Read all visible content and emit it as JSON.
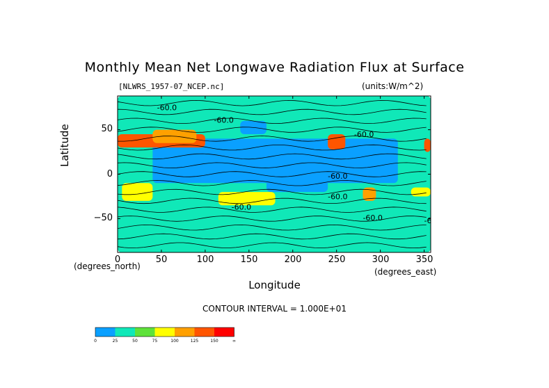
{
  "chart_data": {
    "type": "heatmap",
    "title": "Monthly Mean Net Longwave Radiation Flux at Surface",
    "file_label": "[NLWRS_1957-07_NCEP.nc]",
    "units_label": "(units:W/m^2)",
    "xlabel": "Longitude",
    "ylabel": "Latitude",
    "x_unit_label": "(degrees_east)",
    "y_unit_label": "(degrees_north)",
    "x_ticks": [
      "0",
      "50",
      "100",
      "150",
      "200",
      "250",
      "300",
      "350"
    ],
    "y_ticks": [
      "50",
      "0",
      "−50"
    ],
    "xlim": [
      0,
      357.5
    ],
    "ylim": [
      -88,
      88
    ],
    "contour_interval_text": "CONTOUR INTERVAL = 1.000E+01",
    "contour_labels": [
      "-60.0",
      "-60.0",
      "-60.0",
      "-60.0",
      "-60.0",
      "-60.0",
      "-60.0",
      "-60.0"
    ],
    "colorbar": {
      "labels": [
        "0",
        "25",
        "50",
        "75",
        "100",
        "125",
        "150",
        "∞"
      ],
      "colors": [
        "#0aa0ff",
        "#10e8b8",
        "#5ee23a",
        "#ffff00",
        "#ffa000",
        "#ff5500",
        "#ff0000"
      ]
    },
    "field_regions": [
      {
        "lon": [
          0,
          357.5
        ],
        "lat": [
          -88,
          88
        ],
        "level": 25
      },
      {
        "lon": [
          40,
          320
        ],
        "lat": [
          -10,
          40
        ],
        "level": 10
      },
      {
        "lon": [
          170,
          240
        ],
        "lat": [
          -20,
          5
        ],
        "level": 5
      },
      {
        "lon": [
          140,
          170
        ],
        "lat": [
          45,
          60
        ],
        "level": 0
      },
      {
        "lon": [
          0,
          100
        ],
        "lat": [
          30,
          45
        ],
        "level": 140
      },
      {
        "lon": [
          40,
          90
        ],
        "lat": [
          35,
          50
        ],
        "level": 110
      },
      {
        "lon": [
          240,
          260
        ],
        "lat": [
          28,
          45
        ],
        "level": 140
      },
      {
        "lon": [
          350,
          357.5
        ],
        "lat": [
          25,
          40
        ],
        "level": 140
      },
      {
        "lon": [
          5,
          40
        ],
        "lat": [
          -30,
          -10
        ],
        "level": 80
      },
      {
        "lon": [
          115,
          180
        ],
        "lat": [
          -35,
          -20
        ],
        "level": 90
      },
      {
        "lon": [
          280,
          295
        ],
        "lat": [
          -30,
          -15
        ],
        "level": 120
      },
      {
        "lon": [
          335,
          357.5
        ],
        "lat": [
          -25,
          -15
        ],
        "level": 80
      },
      {
        "lon": [
          0,
          357.5
        ],
        "lat": [
          -88,
          -65
        ],
        "level": 40
      },
      {
        "lon": [
          0,
          357.5
        ],
        "lat": [
          60,
          88
        ],
        "level": 45
      }
    ]
  }
}
